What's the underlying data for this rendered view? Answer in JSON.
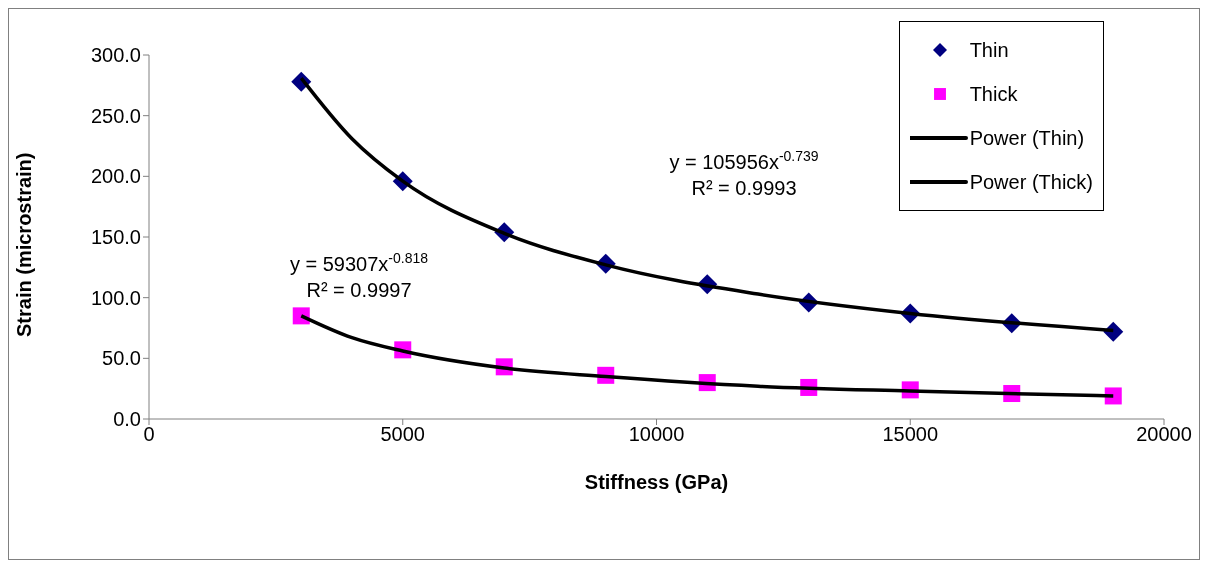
{
  "chart_data": {
    "type": "scatter",
    "xlabel": "Stiffness (GPa)",
    "ylabel": "Strain (microstrain)",
    "x": [
      3000,
      5000,
      7000,
      9000,
      11000,
      13000,
      15000,
      17000,
      19000
    ],
    "series": [
      {
        "name": "Thin",
        "color": "#000080",
        "marker": "diamond",
        "values": [
          278,
          196,
          154,
          128,
          111,
          96,
          87,
          79,
          72
        ]
      },
      {
        "name": "Thick",
        "color": "#ff00ff",
        "marker": "square",
        "values": [
          85,
          57,
          43,
          36,
          30,
          26,
          24,
          21,
          19
        ]
      },
      {
        "name": "Power (Thin)",
        "type": "line",
        "color": "#000000",
        "x": [
          3000,
          4000,
          5000,
          7000,
          9000,
          12000,
          15000,
          19000
        ],
        "values": [
          281,
          231,
          196,
          153,
          127,
          103,
          87,
          73
        ]
      },
      {
        "name": "Power (Thick)",
        "type": "line",
        "color": "#000000",
        "x": [
          3000,
          4000,
          5000,
          7000,
          9000,
          12000,
          15000,
          19000
        ],
        "values": [
          85,
          67,
          56,
          42,
          35,
          27,
          23,
          19
        ]
      }
    ],
    "annotations": [
      "y = 105956x$^{-0.739}$\nR² = 0.9993",
      "y = 59307x$^{-0.818}$\nR² = 0.9997"
    ],
    "xlim": [
      0,
      20000
    ],
    "xticks": [
      0,
      5000,
      10000,
      15000,
      20000
    ],
    "ylim": [
      0,
      300
    ],
    "yticks": [
      {
        "value": 0,
        "label": "0.0"
      },
      {
        "value": 50,
        "label": "50.0"
      },
      {
        "value": 100,
        "label": "100.0"
      },
      {
        "value": 150,
        "label": "150.0"
      },
      {
        "value": 200,
        "label": "200.0"
      },
      {
        "value": 250,
        "label": "250.0"
      },
      {
        "value": 300,
        "label": "300.0"
      }
    ],
    "grid": false,
    "legend": "top right"
  }
}
